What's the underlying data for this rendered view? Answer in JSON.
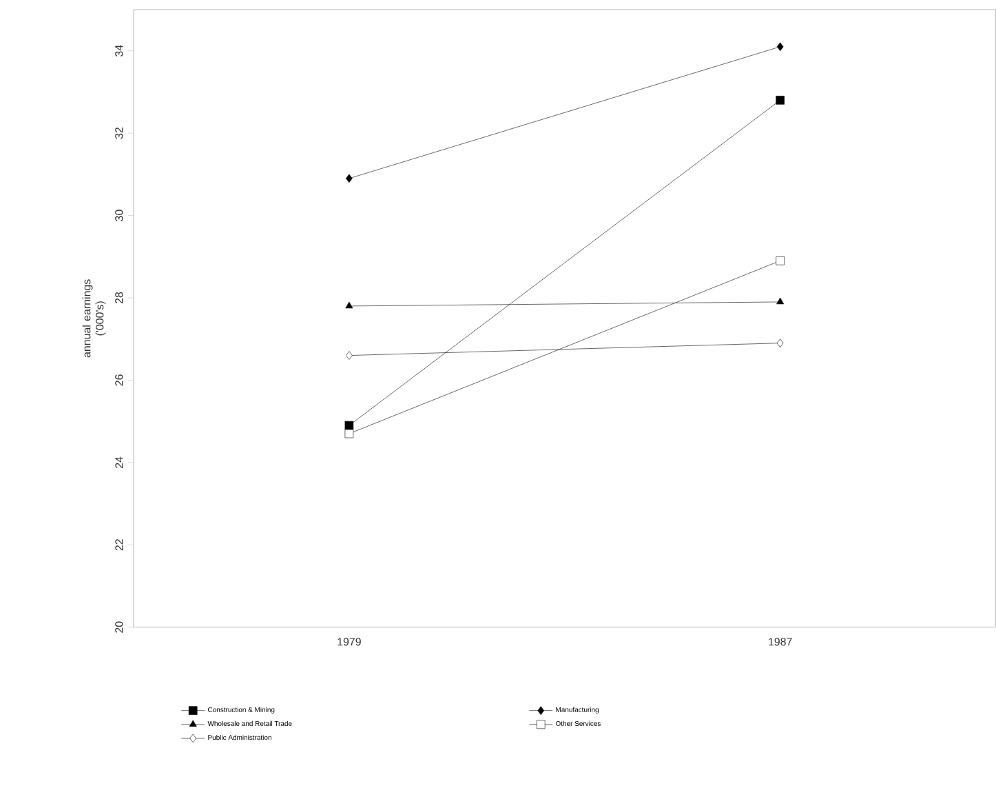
{
  "chart_data": {
    "type": "line",
    "ylabel": "annual earnings ('000's)",
    "categories": [
      "1979",
      "1987"
    ],
    "series": [
      {
        "name": "Construction & Mining",
        "color": "#000000",
        "marker": "square",
        "values": [
          24.9,
          32.8
        ]
      },
      {
        "name": "Manufacturing",
        "color": "#000000",
        "marker": "diamond",
        "values": [
          30.9,
          34.1
        ]
      },
      {
        "name": "Wholesale and Retail Trade",
        "color": "#000000",
        "marker": "triangle",
        "values": [
          27.8,
          27.9
        ]
      },
      {
        "name": "Other Services",
        "color": "#ffffff",
        "marker": "square",
        "values": [
          24.7,
          28.9
        ]
      },
      {
        "name": "Public Administration",
        "color": "#ffffff",
        "marker": "diamond",
        "values": [
          26.6,
          26.9
        ]
      }
    ],
    "ylim": [
      20,
      35
    ],
    "yticks": [
      20,
      22,
      24,
      26,
      28,
      30,
      32,
      34
    ],
    "legend": "bottom",
    "grid": false
  }
}
